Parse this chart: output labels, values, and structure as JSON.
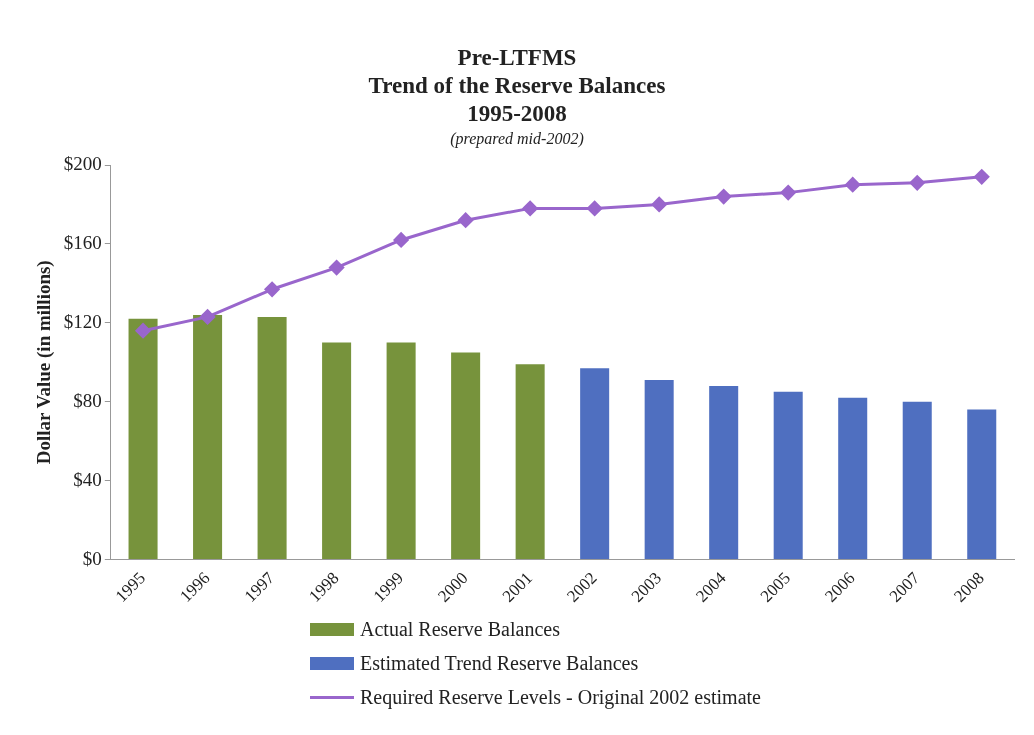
{
  "chart_data": {
    "type": "bar",
    "title": "Pre-LTFMS\nTrend of the Reserve Balances\n1995-2008",
    "subtitle": "(prepared mid-2002)",
    "ylabel": "Dollar Value (in millions)",
    "categories": [
      "1995",
      "1996",
      "1997",
      "1998",
      "1999",
      "2000",
      "2001",
      "2002",
      "2003",
      "2004",
      "2005",
      "2006",
      "2007",
      "2008"
    ],
    "series": [
      {
        "name": "Actual Reserve Balances",
        "color": "#77933c",
        "values": [
          122,
          124,
          123,
          110,
          110,
          105,
          99,
          null,
          null,
          null,
          null,
          null,
          null,
          null
        ]
      },
      {
        "name": "Estimated Trend Reserve Balances",
        "color": "#4f6fc0",
        "values": [
          null,
          null,
          null,
          null,
          null,
          null,
          null,
          97,
          91,
          88,
          85,
          82,
          80,
          76
        ]
      },
      {
        "name": "Required Reserve Levels - Original 2002 estimate",
        "type": "line",
        "color": "#9966cc",
        "marker": "diamond",
        "values": [
          116,
          123,
          137,
          148,
          162,
          172,
          178,
          178,
          180,
          184,
          186,
          190,
          191,
          194
        ]
      }
    ],
    "ylim": [
      0,
      200
    ],
    "yticks": [
      {
        "value": 0,
        "label": "$0"
      },
      {
        "value": 40,
        "label": "$40"
      },
      {
        "value": 80,
        "label": "$80"
      },
      {
        "value": 120,
        "label": "$120"
      },
      {
        "value": 160,
        "label": "$160"
      },
      {
        "value": 200,
        "label": "$200"
      }
    ],
    "grid": false,
    "legend": "bottom"
  }
}
